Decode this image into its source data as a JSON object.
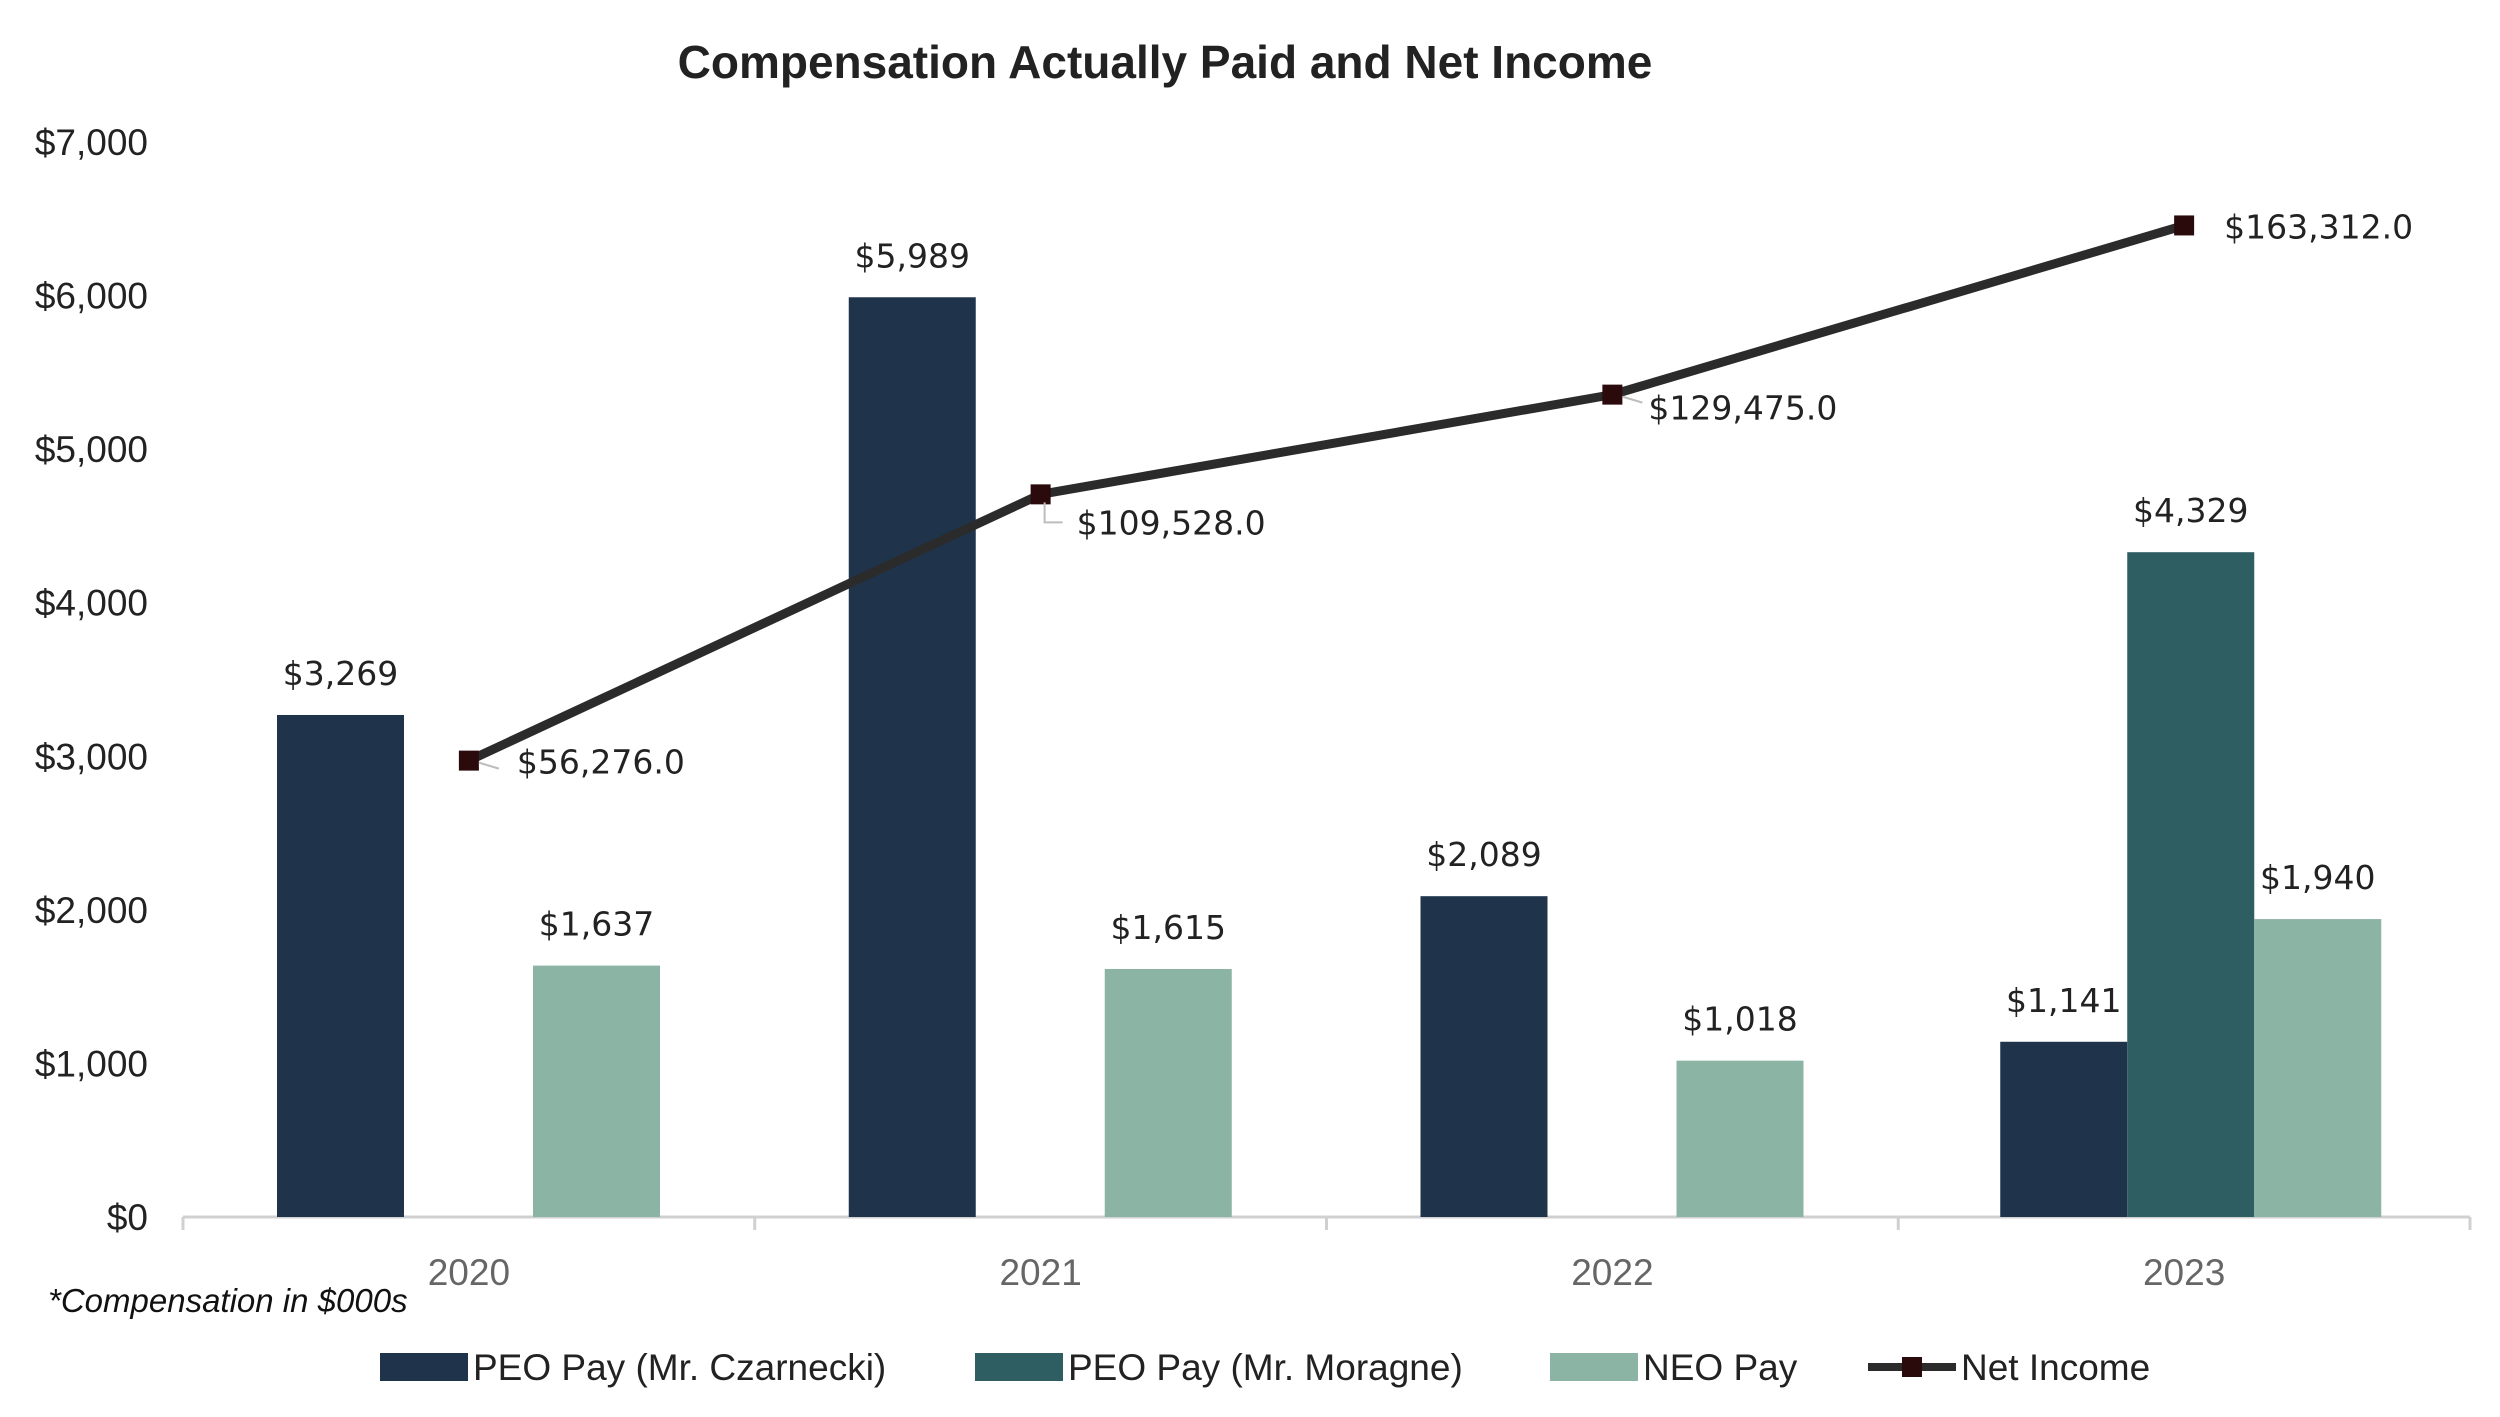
{
  "chart_data": {
    "type": "bar",
    "title": "Compensation Actually Paid and Net Income",
    "note": "*Compensation in $000s",
    "categories": [
      "2020",
      "2021",
      "2022",
      "2023"
    ],
    "ylim": [
      0,
      7000
    ],
    "yticks": [
      0,
      1000,
      2000,
      3000,
      4000,
      5000,
      6000,
      7000
    ],
    "ytick_labels": [
      "$0",
      "$1,000",
      "$2,000",
      "$3,000",
      "$4,000",
      "$5,000",
      "$6,000",
      "$7,000"
    ],
    "grid": false,
    "legend_position": "bottom",
    "series": [
      {
        "name": "PEO Pay (Mr. Czarnecki)",
        "kind": "bar",
        "color": "#1f344a",
        "values": [
          3269,
          5989,
          2089,
          1141
        ],
        "labels": [
          "$3,269",
          "$5,989",
          "$2,089",
          "$1,141"
        ]
      },
      {
        "name": "PEO Pay (Mr. Moragne)",
        "kind": "bar",
        "color": "#2e5e61",
        "values": [
          null,
          null,
          null,
          4329
        ],
        "labels": [
          "",
          "",
          "",
          "$4,329"
        ]
      },
      {
        "name": "NEO Pay",
        "kind": "bar",
        "color": "#8cb4a4",
        "values": [
          1637,
          1615,
          1018,
          1940
        ],
        "labels": [
          "$1,637",
          "$1,615",
          "$1,018",
          "$1,940"
        ]
      },
      {
        "name": "Net Income",
        "kind": "line",
        "color": "#2b2b2b",
        "marker_color": "#2a0a0a",
        "values": [
          56276.0,
          109528.0,
          129475.0,
          163312.0
        ],
        "labels": [
          "$56,276.0",
          "$109,528.0",
          "$129,475.0",
          "$163,312.0"
        ],
        "secondary_axis_range": [
          -35000,
          180000
        ]
      }
    ]
  }
}
